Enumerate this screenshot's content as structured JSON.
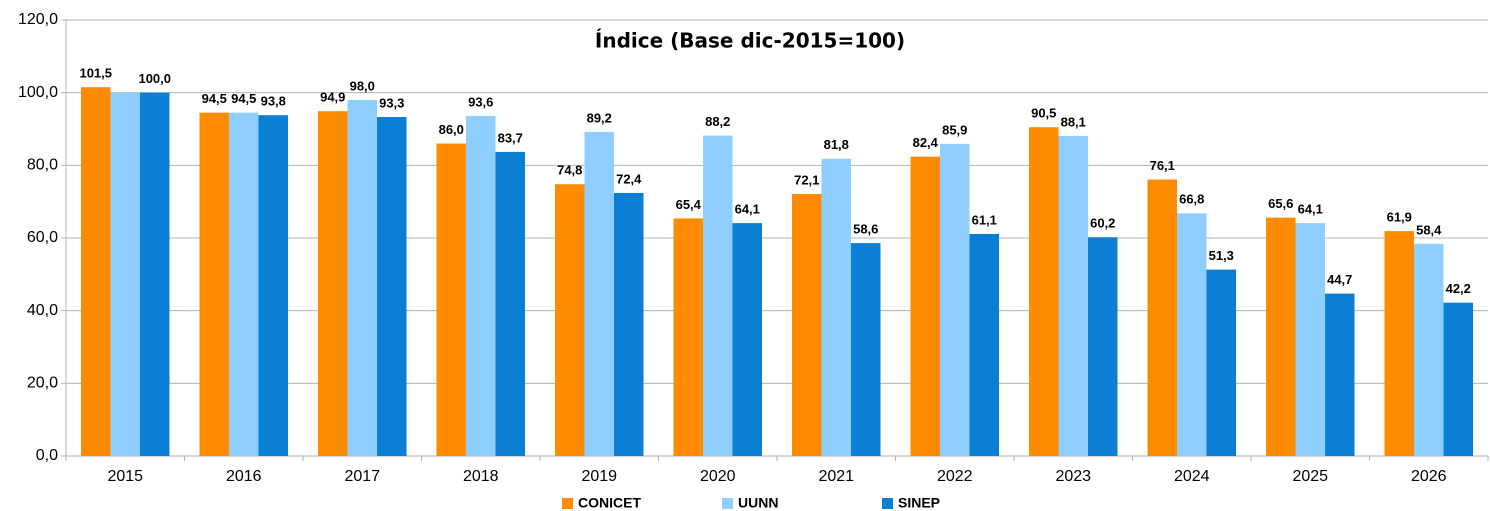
{
  "chart_data": {
    "type": "bar",
    "title": "Índice (Base dic-2015=100)",
    "categories": [
      "2015",
      "2016",
      "2017",
      "2018",
      "2019",
      "2020",
      "2021",
      "2022",
      "2023",
      "2024",
      "2025",
      "2026"
    ],
    "series": [
      {
        "name": "CONICET",
        "color": "#ff8c00",
        "values": [
          101.5,
          94.5,
          94.9,
          86.0,
          74.8,
          65.4,
          72.1,
          82.4,
          90.5,
          76.1,
          65.6,
          61.9
        ],
        "value_labels": [
          "101,5",
          "94,5",
          "94,9",
          "86,0",
          "74,8",
          "65,4",
          "72,1",
          "82,4",
          "90,5",
          "76,1",
          "65,6",
          "61,9"
        ]
      },
      {
        "name": "UUNN",
        "color": "#8ecfff",
        "values": [
          100.0,
          94.5,
          98.0,
          93.6,
          89.2,
          88.2,
          81.8,
          85.9,
          88.1,
          66.8,
          64.1,
          58.4
        ],
        "value_labels": [
          null,
          "94,5",
          "98,0",
          "93,6",
          "89,2",
          "88,2",
          "81,8",
          "85,9",
          "88,1",
          "66,8",
          "64,1",
          "58,4"
        ]
      },
      {
        "name": "SINEP",
        "color": "#0a7fd3",
        "values": [
          100.0,
          93.8,
          93.3,
          83.7,
          72.4,
          64.1,
          58.6,
          61.1,
          60.2,
          51.3,
          44.7,
          42.2
        ],
        "value_labels": [
          "100,0",
          "93,8",
          "93,3",
          "83,7",
          "72,4",
          "64,1",
          "58,6",
          "61,1",
          "60,2",
          "51,3",
          "44,7",
          "42,2"
        ]
      }
    ],
    "ylim": [
      0,
      120
    ],
    "yticks": [
      {
        "value": 0,
        "label": "0,0"
      },
      {
        "value": 20,
        "label": "20,0"
      },
      {
        "value": 40,
        "label": "40,0"
      },
      {
        "value": 60,
        "label": "60,0"
      },
      {
        "value": 80,
        "label": "80,0"
      },
      {
        "value": 100,
        "label": "100,0"
      },
      {
        "value": 120,
        "label": "120,0"
      }
    ],
    "grid": true
  }
}
